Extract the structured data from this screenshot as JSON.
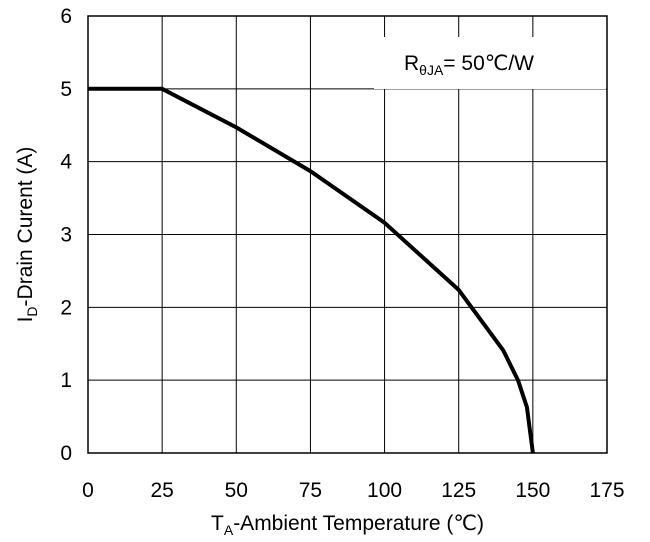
{
  "chart_data": {
    "type": "line",
    "title": "",
    "xlabel": {
      "main": "T",
      "sub": "A",
      "rest": "-Ambient  Temperature (℃)"
    },
    "ylabel": {
      "main": "I",
      "sub": "D",
      "rest": "-Drain Curent (A)"
    },
    "xlim": [
      0,
      175
    ],
    "ylim": [
      0,
      6
    ],
    "xticks": [
      0,
      25,
      50,
      75,
      100,
      125,
      150,
      175
    ],
    "yticks": [
      0,
      1,
      2,
      3,
      4,
      5,
      6
    ],
    "grid": true,
    "annotation": {
      "main": "R",
      "sub": "θJA",
      "rest": "= 50℃/W"
    },
    "series": [
      {
        "color": "#000000",
        "x": [
          0,
          25,
          50,
          75,
          100,
          125,
          140,
          145,
          148,
          150
        ],
        "y": [
          5.0,
          5.0,
          4.47,
          3.87,
          3.16,
          2.24,
          1.41,
          1.0,
          0.63,
          0
        ]
      }
    ]
  }
}
